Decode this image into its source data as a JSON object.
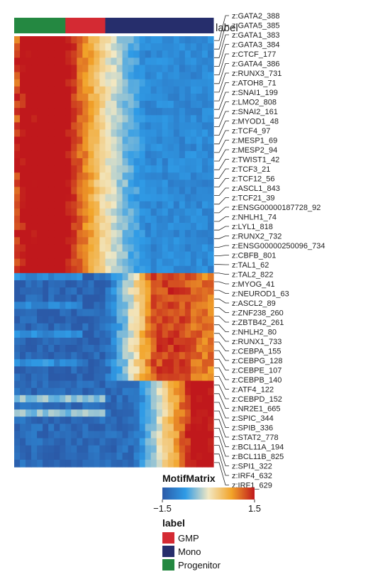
{
  "chart_data": {
    "type": "heatmap",
    "annotation_title": "label",
    "column_annotation": [
      {
        "label": "Progenitor",
        "columns": 9
      },
      {
        "label": "GMP",
        "columns": 7
      },
      {
        "label": "Mono",
        "columns": 19
      }
    ],
    "row_labels": [
      "z:GATA2_388",
      "z:GATA5_385",
      "z:GATA1_383",
      "z:GATA3_384",
      "z:CTCF_177",
      "z:GATA4_386",
      "z:RUNX3_731",
      "z:ATOH8_71",
      "z:SNAI1_199",
      "z:LMO2_808",
      "z:SNAI2_161",
      "z:MYOD1_48",
      "z:TCF4_97",
      "z:MESP1_69",
      "z:MESP2_94",
      "z:TWIST1_42",
      "z:TCF3_21",
      "z:TCF12_56",
      "z:ASCL1_843",
      "z:TCF21_39",
      "z:ENSG00000187728_92",
      "z:NHLH1_74",
      "z:LYL1_818",
      "z:RUNX2_732",
      "z:ENSG00000250096_734",
      "z:CBFB_801",
      "z:TAL1_62",
      "z:TAL2_822",
      "z:MYOG_41",
      "z:NEUROD1_63",
      "z:ASCL2_89",
      "z:ZNF238_260",
      "z:ZBTB42_261",
      "z:NHLH2_80",
      "z:RUNX1_733",
      "z:CEBPA_155",
      "z:CEBPG_128",
      "z:CEBPE_107",
      "z:CEBPB_140",
      "z:ATF4_122",
      "z:CEBPD_152",
      "z:NR2E1_665",
      "z:SPIC_344",
      "z:SPIB_336",
      "z:STAT2_778",
      "z:BCL11A_194",
      "z:BCL11B_825",
      "z:SPI1_322",
      "z:IRF4_632",
      "z:IRF1_629"
    ],
    "heatmap_rows": 60,
    "heatmap_columns": 35,
    "color_scale": {
      "title": "MotifMatrix",
      "min": -1.5,
      "max": 1.5,
      "tick_labels": [
        "−1.5",
        "1.5"
      ],
      "colors": [
        "#2b5aa8",
        "#2f9be6",
        "#f2e8c3",
        "#f2a429",
        "#c0181c"
      ]
    },
    "legend": {
      "title": "label",
      "items": [
        {
          "label": "GMP",
          "color": "#d42a33"
        },
        {
          "label": "Mono",
          "color": "#262e6c"
        },
        {
          "label": "Progenitor",
          "color": "#248841"
        }
      ]
    }
  }
}
